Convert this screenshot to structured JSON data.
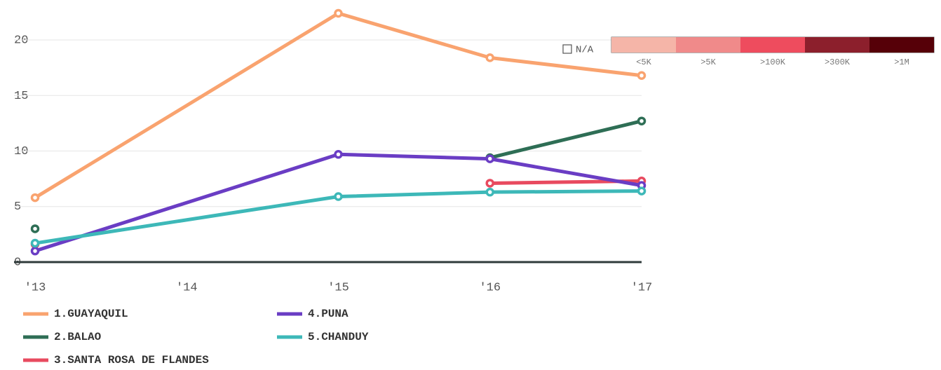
{
  "chart_data": {
    "type": "line",
    "x": [
      2013,
      2015,
      2016,
      2017
    ],
    "xlim": [
      2013,
      2017
    ],
    "xticks": [
      {
        "value": 2013,
        "label": "'13"
      },
      {
        "value": 2014,
        "label": "'14"
      },
      {
        "value": 2015,
        "label": "'15"
      },
      {
        "value": 2016,
        "label": "'16"
      },
      {
        "value": 2017,
        "label": "'17"
      }
    ],
    "ylim": [
      0,
      22.4
    ],
    "yticks": [
      0,
      5,
      10,
      15,
      20
    ],
    "grid": true,
    "series": [
      {
        "name": "1.GUAYAQUIL",
        "color": "#f9a36f",
        "values": [
          5.8,
          22.4,
          18.4,
          16.8
        ]
      },
      {
        "name": "2.BALAO",
        "color": "#2e6e55",
        "values": [
          3.0,
          null,
          9.4,
          12.7
        ]
      },
      {
        "name": "3.SANTA ROSA DE FLANDES",
        "color": "#e84a5f",
        "values": [
          1.6,
          null,
          7.1,
          7.3
        ]
      },
      {
        "name": "4.PUNA",
        "color": "#6a3dc4",
        "values": [
          1.0,
          9.7,
          9.3,
          6.9
        ]
      },
      {
        "name": "5.CHANDUY",
        "color": "#3db8b8",
        "values": [
          1.7,
          5.9,
          6.3,
          6.4
        ]
      }
    ],
    "color_scale": {
      "na_label": "N/A",
      "items": [
        {
          "label": "<5K",
          "color": "#f5b5a8"
        },
        {
          "label": ">5K",
          "color": "#f08a8a"
        },
        {
          "label": ">100K",
          "color": "#ee4c5e"
        },
        {
          "label": ">300K",
          "color": "#8c1f2c"
        },
        {
          "label": ">1M",
          "color": "#560008"
        }
      ]
    }
  }
}
